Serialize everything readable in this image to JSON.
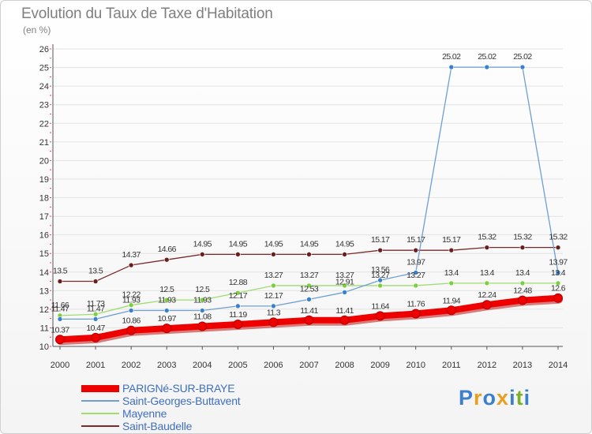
{
  "header": {
    "title": "Evolution du Taux de Taxe d'Habitation",
    "unit": "(en %)"
  },
  "logo": {
    "text": "Proxiti"
  },
  "chart_data": {
    "type": "line",
    "title": "Evolution du Taux de Taxe d'Habitation",
    "ylabel": "(en %)",
    "xlabel": "",
    "x": [
      "2000",
      "2001",
      "2002",
      "2003",
      "2004",
      "2005",
      "2006",
      "2007",
      "2008",
      "2009",
      "2010",
      "2011",
      "2012",
      "2013",
      "2014"
    ],
    "ylim": [
      10,
      26
    ],
    "yticks": [
      "10",
      "11",
      "12",
      "13",
      "14",
      "15",
      "16",
      "17",
      "18",
      "19",
      "20",
      "21",
      "22",
      "23",
      "24",
      "25",
      "26"
    ],
    "grid": "horizontal",
    "legend": "bottom-left",
    "series": [
      {
        "name": "PARIGNé-SUR-BRAYE",
        "color": "#ee0000",
        "width": 8,
        "values": [
          10.37,
          10.47,
          10.86,
          10.97,
          11.08,
          11.19,
          11.3,
          11.41,
          11.41,
          11.64,
          11.76,
          11.94,
          12.24,
          12.48,
          12.6
        ],
        "labels": [
          "10.37",
          "10.47",
          "10.86",
          "10.97",
          "11.08",
          "11.19",
          "11.3",
          "11.41",
          "11.41",
          "11.64",
          "11.76",
          "11.94",
          "12.24",
          "12.48",
          "12.6"
        ]
      },
      {
        "name": "Saint-Georges-Buttavent",
        "color": "#6d9fd4",
        "width": 1.3,
        "values": [
          11.47,
          11.47,
          11.93,
          11.93,
          11.93,
          12.17,
          12.17,
          12.53,
          12.91,
          13.56,
          13.97,
          25.02,
          25.02,
          25.02,
          13.97
        ],
        "labels": [
          "11.47",
          "11.47",
          "11.93",
          "11.93",
          "11.93",
          "12.17",
          "12.17",
          "12.53",
          "12.91",
          "13.56",
          "13.97",
          "25.02",
          "25.02",
          "25.02",
          "13.97"
        ]
      },
      {
        "name": "Mayenne",
        "color": "#9fdc70",
        "width": 1.3,
        "values": [
          11.66,
          11.73,
          12.22,
          12.5,
          12.5,
          12.88,
          13.27,
          13.27,
          13.27,
          13.27,
          13.27,
          13.4,
          13.4,
          13.4,
          13.4
        ],
        "labels": [
          "11.66",
          "11.73",
          "12.22",
          "12.5",
          "12.5",
          "12.88",
          "13.27",
          "13.27",
          "13.27",
          "13.27",
          "13.27",
          "13.4",
          "13.4",
          "13.4",
          "13.4"
        ]
      },
      {
        "name": "Saint-Baudelle",
        "color": "#7a2a2a",
        "width": 1.3,
        "values": [
          13.5,
          13.5,
          14.37,
          14.66,
          14.95,
          14.95,
          14.95,
          14.95,
          14.95,
          15.17,
          15.17,
          15.17,
          15.32,
          15.32,
          15.32
        ],
        "labels": [
          "13.5",
          "13.5",
          "14.37",
          "14.66",
          "14.95",
          "14.95",
          "14.95",
          "14.95",
          "14.95",
          "15.17",
          "15.17",
          "15.17",
          "15.32",
          "15.32",
          "15.32"
        ]
      }
    ]
  }
}
